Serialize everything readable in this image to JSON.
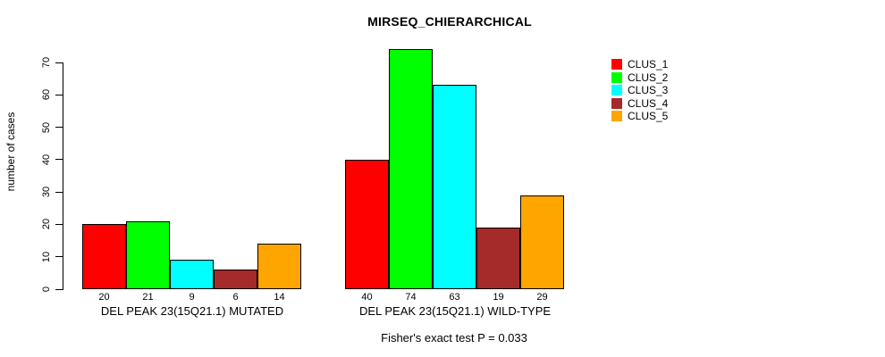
{
  "chart_data": {
    "type": "bar",
    "title": "MIRSEQ_CHIERARCHICAL",
    "xlabel": "",
    "ylabel": "number of cases",
    "ylim": [
      0,
      74
    ],
    "yticks": [
      0,
      10,
      20,
      30,
      40,
      50,
      60,
      70
    ],
    "grid": false,
    "legend_position": "top-right",
    "groups": [
      {
        "label": "DEL PEAK 23(15Q21.1) MUTATED",
        "values": [
          20,
          21,
          9,
          6,
          14
        ]
      },
      {
        "label": "DEL PEAK 23(15Q21.1) WILD-TYPE",
        "values": [
          40,
          74,
          63,
          19,
          29
        ]
      }
    ],
    "series": [
      {
        "name": "CLUS_1",
        "color": "#ff0000"
      },
      {
        "name": "CLUS_2",
        "color": "#00ff00"
      },
      {
        "name": "CLUS_3",
        "color": "#00ffff"
      },
      {
        "name": "CLUS_4",
        "color": "#a52a2a"
      },
      {
        "name": "CLUS_5",
        "color": "#ffa500"
      }
    ],
    "annotation": "Fisher's exact test P = 0.033"
  }
}
